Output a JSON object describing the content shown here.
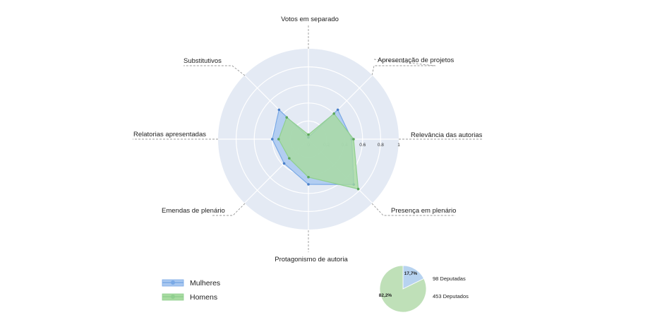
{
  "chart_data": [
    {
      "type": "radar",
      "axes": [
        "Votos em separado",
        "Apresentação de projetos",
        "Relevância das autorias",
        "Presença em plenário",
        "Protagonismo de autoria",
        "Emendas de plenário",
        "Relatorias apresentadas",
        "Substitutivos"
      ],
      "ticks": [
        "0",
        "0.2",
        "0.4",
        "0.6",
        "0.8",
        "1"
      ],
      "rlim": [
        0,
        1
      ],
      "series": [
        {
          "name": "Mulheres",
          "color": "#7aa9e6",
          "fill": "#a9c8f0",
          "values": [
            0.02,
            0.46,
            0.48,
            0.71,
            0.5,
            0.38,
            0.4,
            0.46
          ]
        },
        {
          "name": "Homens",
          "color": "#8fcf8f",
          "fill": "#a8dba0",
          "values": [
            0.05,
            0.4,
            0.5,
            0.78,
            0.42,
            0.3,
            0.33,
            0.34
          ]
        }
      ],
      "legend": "bottom-left"
    },
    {
      "type": "pie",
      "slices": [
        {
          "label": "17,7%",
          "value": 17.7,
          "color": "#b7d3f0",
          "note": "98 Deputadas"
        },
        {
          "label": "82,2%",
          "value": 82.2,
          "color": "#bfe0b8",
          "note": "453 Deputados"
        }
      ]
    }
  ]
}
